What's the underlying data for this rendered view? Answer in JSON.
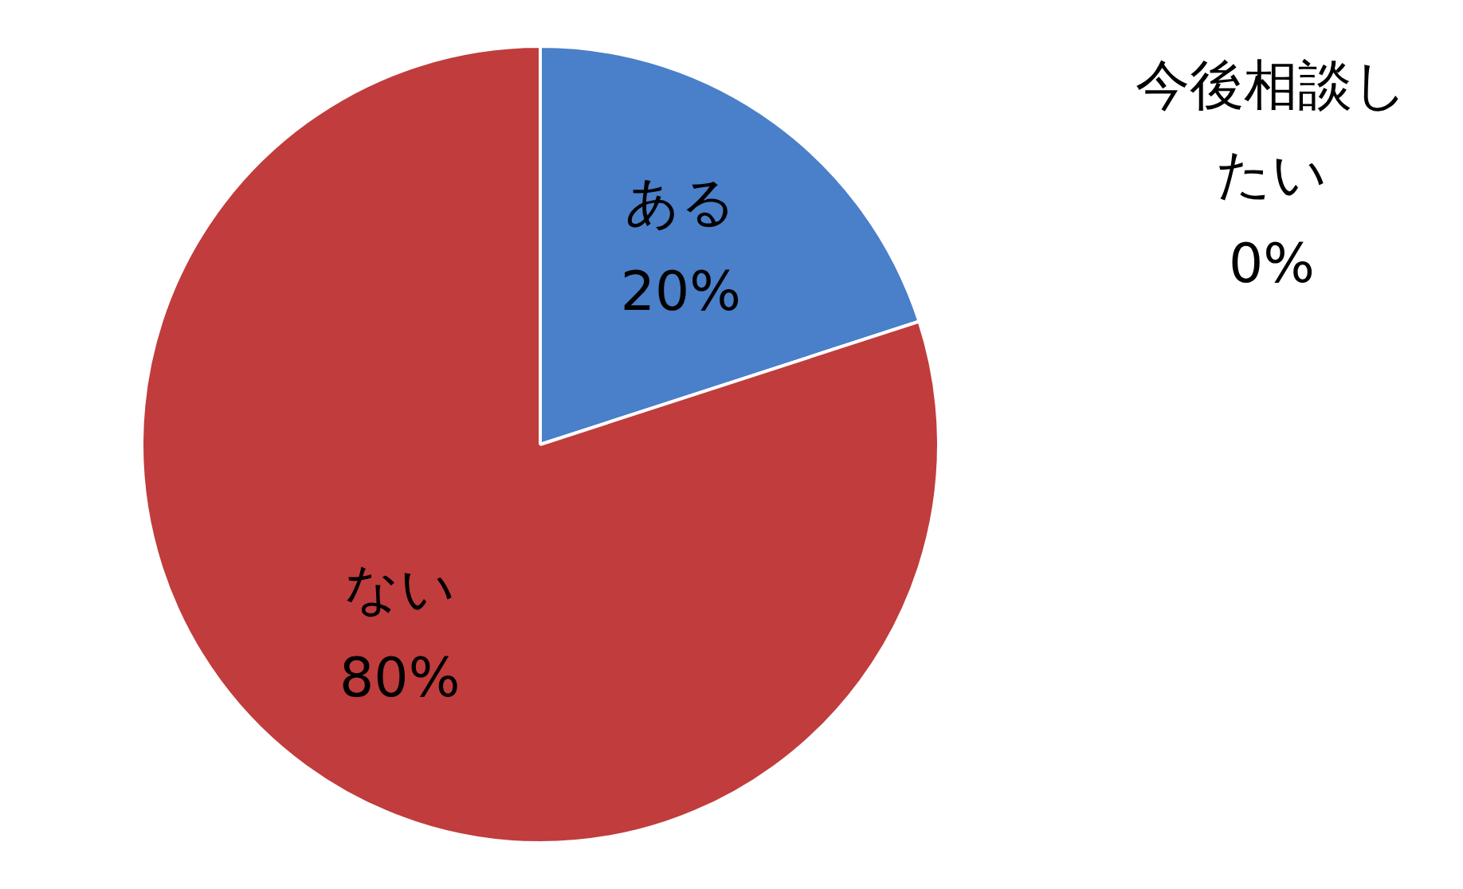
{
  "chart_data": {
    "type": "pie",
    "categories": [
      "ある",
      "ない",
      "今後相談したい"
    ],
    "values": [
      20,
      80,
      0
    ],
    "colors": [
      "#4a7fc9",
      "#c13c3c",
      "#b7dde8"
    ],
    "value_labels": [
      "20%",
      "80%",
      "0%"
    ],
    "legend": false
  }
}
